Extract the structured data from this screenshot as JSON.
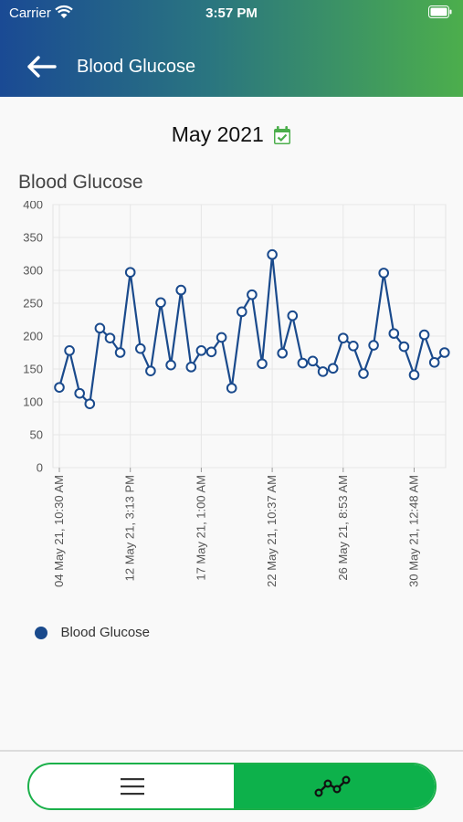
{
  "status_bar": {
    "carrier": "Carrier",
    "time": "3:57 PM"
  },
  "header": {
    "title": "Blood Glucose",
    "back_icon": "arrow-left-icon"
  },
  "month_picker": {
    "label": "May 2021",
    "icon": "calendar-check-icon"
  },
  "chart_title": "Blood Glucose",
  "legend": {
    "label": "Blood Glucose",
    "color": "#1a4a8c"
  },
  "toggle": {
    "list_icon": "list-icon",
    "chart_icon": "trend-line-icon",
    "active": "chart",
    "active_color": "#0db14b"
  },
  "chart_data": {
    "type": "line",
    "ylim": [
      0,
      400
    ],
    "yticks": [
      0,
      50,
      100,
      150,
      200,
      250,
      300,
      350,
      400
    ],
    "grid": true,
    "legend_position": "bottom-left",
    "series_color": "#1a4a8c",
    "xtick_labels": [
      "04 May 21, 10:30 AM",
      "12 May 21, 3:13 PM",
      "17 May 21, 1:00 AM",
      "22 May 21, 10:37 AM",
      "26 May 21, 8:53 AM",
      "30 May 21, 12:48 AM"
    ],
    "series": [
      {
        "name": "Blood Glucose",
        "values": [
          122,
          178,
          113,
          97,
          212,
          197,
          175,
          297,
          181,
          147,
          251,
          156,
          270,
          153,
          178,
          176,
          198,
          121,
          237,
          263,
          158,
          324,
          174,
          231,
          159,
          162,
          146,
          151,
          197,
          185,
          143,
          186,
          296,
          204,
          184,
          141,
          202,
          160,
          175
        ]
      }
    ]
  }
}
